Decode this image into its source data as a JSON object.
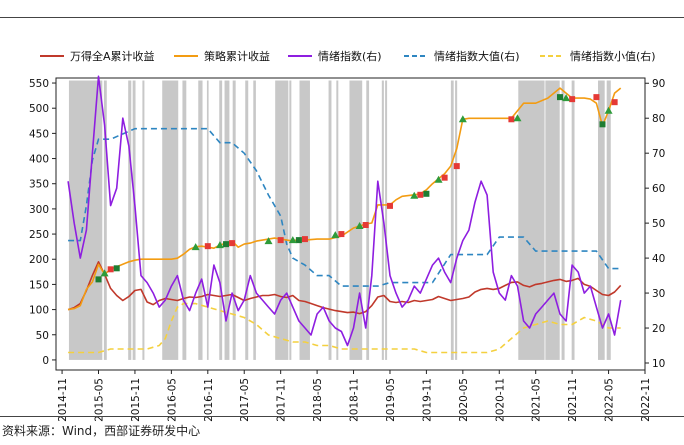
{
  "chart_data": {
    "type": "line",
    "title": "",
    "xlabel": "",
    "ylabel": "",
    "y2label": "",
    "x_ticks": [
      "2014-11",
      "2015-05",
      "2015-11",
      "2016-05",
      "2016-11",
      "2017-05",
      "2017-11",
      "2018-05",
      "2018-11",
      "2019-05",
      "2019-11",
      "2020-05",
      "2020-11",
      "2021-05",
      "2021-11",
      "2022-05",
      "2022-11"
    ],
    "ylim": [
      -20,
      560
    ],
    "y_ticks": [
      0,
      50,
      100,
      150,
      200,
      250,
      300,
      350,
      400,
      450,
      500,
      550
    ],
    "y2lim": [
      8,
      91.5
    ],
    "y2_ticks": [
      10,
      20,
      30,
      40,
      50,
      60,
      70,
      80,
      90
    ],
    "xlim": [
      "2014-10",
      "2022-11"
    ],
    "legend_position": "top",
    "grid": false,
    "shaded_periods": [
      [
        "2014-12-05",
        "2015-05-20"
      ],
      [
        "2015-05-28",
        "2015-06-12"
      ],
      [
        "2015-09-28",
        "2015-10-13"
      ],
      [
        "2015-10-20",
        "2015-11-04"
      ],
      [
        "2015-12-08",
        "2015-12-18"
      ],
      [
        "2016-03-16",
        "2016-06-05"
      ],
      [
        "2016-06-26",
        "2016-07-15"
      ],
      [
        "2016-09-14",
        "2016-10-05"
      ],
      [
        "2016-10-27",
        "2016-11-05"
      ],
      [
        "2016-12-28",
        "2017-01-12"
      ],
      [
        "2017-01-24",
        "2017-02-18"
      ],
      [
        "2017-03-04",
        "2017-03-19"
      ],
      [
        "2017-05-06",
        "2017-05-21"
      ],
      [
        "2017-06-16",
        "2017-06-29"
      ],
      [
        "2017-10-04",
        "2017-12-09"
      ],
      [
        "2017-12-14",
        "2017-12-24"
      ],
      [
        "2018-02-04",
        "2018-03-26"
      ],
      [
        "2018-06-28",
        "2018-07-12"
      ],
      [
        "2018-08-06",
        "2018-08-16"
      ],
      [
        "2018-10-11",
        "2018-12-14"
      ],
      [
        "2019-01-04",
        "2019-01-18"
      ],
      [
        "2019-03-21",
        "2019-04-01"
      ],
      [
        "2019-04-07",
        "2019-04-17"
      ],
      [
        "2020-03-02",
        "2020-03-16"
      ],
      [
        "2020-03-23",
        "2020-04-03"
      ],
      [
        "2021-02-05",
        "2021-06-15"
      ],
      [
        "2021-06-19",
        "2021-08-30"
      ],
      [
        "2021-09-09",
        "2021-09-24"
      ],
      [
        "2021-10-29",
        "2021-11-13"
      ],
      [
        "2022-03-09",
        "2022-04-12"
      ],
      [
        "2022-04-22",
        "2022-05-12"
      ]
    ],
    "series": [
      {
        "name": "万得全A累计收益",
        "axis": "left",
        "color": "#c0392b",
        "style": "solid",
        "x": [
          "2014-12",
          "2015-01",
          "2015-02",
          "2015-03",
          "2015-04",
          "2015-05",
          "2015-06",
          "2015-07",
          "2015-08",
          "2015-09",
          "2015-10",
          "2015-11",
          "2015-12",
          "2016-01",
          "2016-02",
          "2016-03",
          "2016-04",
          "2016-05",
          "2016-06",
          "2016-07",
          "2016-08",
          "2016-09",
          "2016-10",
          "2016-11",
          "2016-12",
          "2017-01",
          "2017-02",
          "2017-03",
          "2017-04",
          "2017-05",
          "2017-06",
          "2017-07",
          "2017-08",
          "2017-09",
          "2017-10",
          "2017-11",
          "2017-12",
          "2018-01",
          "2018-02",
          "2018-03",
          "2018-04",
          "2018-05",
          "2018-06",
          "2018-07",
          "2018-08",
          "2018-09",
          "2018-10",
          "2018-11",
          "2018-12",
          "2019-01",
          "2019-02",
          "2019-03",
          "2019-04",
          "2019-05",
          "2019-06",
          "2019-07",
          "2019-08",
          "2019-09",
          "2019-10",
          "2019-11",
          "2019-12",
          "2020-01",
          "2020-02",
          "2020-03",
          "2020-04",
          "2020-05",
          "2020-06",
          "2020-07",
          "2020-08",
          "2020-09",
          "2020-10",
          "2020-11",
          "2020-12",
          "2021-01",
          "2021-02",
          "2021-03",
          "2021-04",
          "2021-05",
          "2021-06",
          "2021-07",
          "2021-08",
          "2021-09",
          "2021-10",
          "2021-11",
          "2021-12",
          "2022-01",
          "2022-02",
          "2022-03",
          "2022-04",
          "2022-05",
          "2022-06",
          "2022-07"
        ],
        "values": [
          100,
          104,
          112,
          138,
          168,
          195,
          170,
          142,
          128,
          118,
          126,
          138,
          140,
          115,
          110,
          118,
          122,
          120,
          118,
          122,
          125,
          124,
          126,
          130,
          128,
          126,
          128,
          130,
          124,
          118,
          122,
          125,
          128,
          128,
          130,
          126,
          124,
          128,
          118,
          116,
          112,
          108,
          104,
          101,
          98,
          96,
          94,
          95,
          92,
          96,
          108,
          125,
          128,
          116,
          114,
          116,
          114,
          118,
          116,
          118,
          120,
          126,
          122,
          118,
          120,
          122,
          125,
          135,
          140,
          142,
          140,
          142,
          148,
          154,
          155,
          148,
          145,
          150,
          152,
          155,
          158,
          160,
          156,
          158,
          162,
          150,
          146,
          138,
          130,
          128,
          135,
          148
        ]
      },
      {
        "name": "策略累计收益",
        "axis": "left",
        "color": "#f39c12",
        "style": "solid",
        "x": [
          "2014-12",
          "2015-01",
          "2015-02",
          "2015-03",
          "2015-04",
          "2015-05",
          "2015-06",
          "2015-07",
          "2015-08",
          "2015-09",
          "2015-10",
          "2015-11",
          "2015-12",
          "2016-01",
          "2016-03",
          "2016-05",
          "2016-06",
          "2016-07",
          "2016-08",
          "2016-09",
          "2016-10",
          "2016-11",
          "2016-12",
          "2017-01",
          "2017-02",
          "2017-03",
          "2017-04",
          "2017-05",
          "2017-06",
          "2017-07",
          "2017-08",
          "2017-09",
          "2017-10",
          "2017-11",
          "2017-12",
          "2018-01",
          "2018-02",
          "2018-03",
          "2018-05",
          "2018-07",
          "2018-09",
          "2018-10",
          "2018-11",
          "2018-12",
          "2019-01",
          "2019-02",
          "2019-03",
          "2019-05",
          "2019-06",
          "2019-07",
          "2019-09",
          "2019-10",
          "2019-11",
          "2019-12",
          "2020-01",
          "2020-02",
          "2020-03",
          "2020-04",
          "2020-05",
          "2020-06",
          "2020-07",
          "2020-09",
          "2020-11",
          "2021-01",
          "2021-02",
          "2021-03",
          "2021-05",
          "2021-07",
          "2021-09",
          "2021-11",
          "2022-01",
          "2022-02",
          "2022-03",
          "2022-04",
          "2022-05",
          "2022-06",
          "2022-07"
        ],
        "values": [
          100,
          102,
          108,
          140,
          155,
          190,
          170,
          180,
          185,
          190,
          195,
          198,
          200,
          200,
          200,
          200,
          202,
          210,
          220,
          225,
          226,
          224,
          222,
          228,
          232,
          236,
          224,
          230,
          232,
          236,
          238,
          240,
          242,
          240,
          238,
          236,
          240,
          238,
          240,
          240,
          246,
          254,
          262,
          266,
          270,
          272,
          308,
          308,
          318,
          325,
          328,
          330,
          338,
          350,
          360,
          370,
          385,
          420,
          478,
          480,
          480,
          480,
          480,
          480,
          495,
          510,
          510,
          520,
          540,
          520,
          520,
          518,
          510,
          465,
          495,
          530,
          540
        ]
      },
      {
        "name": "情绪指数(右)",
        "axis": "right",
        "color": "#8e1ee0",
        "style": "solid",
        "x": [
          "2014-12",
          "2015-01",
          "2015-02",
          "2015-03",
          "2015-04",
          "2015-05",
          "2015-06",
          "2015-07",
          "2015-08",
          "2015-09",
          "2015-10",
          "2015-11",
          "2015-12",
          "2016-01",
          "2016-02",
          "2016-03",
          "2016-04",
          "2016-05",
          "2016-06",
          "2016-07",
          "2016-08",
          "2016-09",
          "2016-10",
          "2016-11",
          "2016-12",
          "2017-01",
          "2017-02",
          "2017-03",
          "2017-04",
          "2017-05",
          "2017-06",
          "2017-07",
          "2017-08",
          "2017-09",
          "2017-10",
          "2017-11",
          "2017-12",
          "2018-01",
          "2018-02",
          "2018-03",
          "2018-04",
          "2018-05",
          "2018-06",
          "2018-07",
          "2018-08",
          "2018-09",
          "2018-10",
          "2018-11",
          "2018-12",
          "2019-01",
          "2019-02",
          "2019-03",
          "2019-04",
          "2019-05",
          "2019-06",
          "2019-07",
          "2019-08",
          "2019-09",
          "2019-10",
          "2019-11",
          "2019-12",
          "2020-01",
          "2020-02",
          "2020-03",
          "2020-04",
          "2020-05",
          "2020-06",
          "2020-07",
          "2020-08",
          "2020-09",
          "2020-10",
          "2020-11",
          "2020-12",
          "2021-01",
          "2021-02",
          "2021-03",
          "2021-04",
          "2021-05",
          "2021-06",
          "2021-07",
          "2021-08",
          "2021-09",
          "2021-10",
          "2021-11",
          "2021-12",
          "2022-01",
          "2022-02",
          "2022-03",
          "2022-04",
          "2022-05",
          "2022-06",
          "2022-07"
        ],
        "values": [
          62,
          50,
          40,
          48,
          70,
          92,
          78,
          55,
          60,
          80,
          72,
          55,
          35,
          33,
          30,
          26,
          28,
          32,
          35,
          28,
          25,
          30,
          34,
          26,
          38,
          33,
          22,
          30,
          25,
          28,
          35,
          30,
          28,
          26,
          24,
          28,
          30,
          26,
          22,
          20,
          18,
          24,
          26,
          22,
          20,
          19,
          15,
          20,
          30,
          20,
          35,
          62,
          50,
          35,
          30,
          26,
          28,
          32,
          30,
          34,
          38,
          40,
          36,
          33,
          40,
          45,
          48,
          56,
          62,
          58,
          36,
          30,
          28,
          35,
          32,
          22,
          20,
          24,
          26,
          28,
          30,
          24,
          22,
          38,
          36,
          30,
          32,
          26,
          20,
          24,
          18,
          28
        ]
      },
      {
        "name": "情绪指数大值(右)",
        "axis": "right",
        "color": "#2e86c1",
        "style": "dashed",
        "x": [
          "2014-12",
          "2015-02",
          "2015-03",
          "2015-04",
          "2015-05",
          "2015-07",
          "2015-11",
          "2016-01",
          "2016-03",
          "2016-06",
          "2016-09",
          "2016-11",
          "2017-01",
          "2017-03",
          "2017-05",
          "2017-07",
          "2017-09",
          "2017-11",
          "2017-12",
          "2018-01",
          "2018-03",
          "2018-05",
          "2018-07",
          "2018-09",
          "2018-11",
          "2019-01",
          "2019-03",
          "2019-05",
          "2019-07",
          "2019-09",
          "2019-12",
          "2020-03",
          "2020-05",
          "2020-07",
          "2020-09",
          "2020-11",
          "2021-01",
          "2021-03",
          "2021-05",
          "2021-07",
          "2021-09",
          "2021-11",
          "2022-01",
          "2022-03",
          "2022-05",
          "2022-07"
        ],
        "values": [
          45,
          45,
          55,
          68,
          74,
          74,
          77,
          77,
          77,
          77,
          77,
          77,
          73,
          73,
          70,
          65,
          58,
          52,
          44,
          40,
          38,
          35,
          35,
          32,
          32,
          32,
          32,
          33,
          33,
          33,
          33,
          41,
          41,
          41,
          41,
          46,
          46,
          46,
          42,
          42,
          42,
          42,
          42,
          42,
          37,
          37
        ]
      },
      {
        "name": "情绪指数小值(右)",
        "axis": "right",
        "color": "#f4d03f",
        "style": "dashed",
        "x": [
          "2014-12",
          "2015-03",
          "2015-05",
          "2015-07",
          "2015-09",
          "2015-11",
          "2016-01",
          "2016-03",
          "2016-04",
          "2016-05",
          "2016-06",
          "2016-07",
          "2016-09",
          "2016-11",
          "2017-01",
          "2017-03",
          "2017-05",
          "2017-07",
          "2017-09",
          "2017-11",
          "2018-01",
          "2018-03",
          "2018-05",
          "2018-07",
          "2018-09",
          "2018-11",
          "2019-01",
          "2019-03",
          "2019-05",
          "2019-07",
          "2019-09",
          "2019-11",
          "2020-01",
          "2020-03",
          "2020-05",
          "2020-07",
          "2020-09",
          "2020-11",
          "2021-01",
          "2021-03",
          "2021-05",
          "2021-07",
          "2021-09",
          "2021-11",
          "2022-01",
          "2022-03",
          "2022-05",
          "2022-07"
        ],
        "values": [
          13,
          13,
          13,
          14,
          14,
          14,
          14,
          15,
          17,
          22,
          26,
          27,
          27,
          26,
          25,
          24,
          23,
          21,
          18,
          17,
          16,
          16,
          15,
          15,
          14,
          14,
          14,
          14,
          14,
          14,
          14,
          13,
          13,
          13,
          13,
          13,
          13,
          14,
          17,
          20,
          21,
          22,
          21,
          21,
          23,
          22,
          20,
          20
        ]
      }
    ],
    "markers": {
      "red_square": [
        {
          "x": "2015-07",
          "y": 180
        },
        {
          "x": "2016-11",
          "y": 226
        },
        {
          "x": "2017-03",
          "y": 232
        },
        {
          "x": "2017-11",
          "y": 238
        },
        {
          "x": "2018-03",
          "y": 240
        },
        {
          "x": "2018-09",
          "y": 250
        },
        {
          "x": "2019-01",
          "y": 268
        },
        {
          "x": "2019-05",
          "y": 306
        },
        {
          "x": "2019-10",
          "y": 328
        },
        {
          "x": "2020-02",
          "y": 362
        },
        {
          "x": "2020-04",
          "y": 385
        },
        {
          "x": "2021-01",
          "y": 478
        },
        {
          "x": "2021-11",
          "y": 518
        },
        {
          "x": "2022-03",
          "y": 522
        },
        {
          "x": "2022-06",
          "y": 512
        }
      ],
      "green_triangle": [
        {
          "x": "2015-06",
          "y": 172
        },
        {
          "x": "2016-09",
          "y": 224
        },
        {
          "x": "2017-01",
          "y": 228
        },
        {
          "x": "2017-09",
          "y": 236
        },
        {
          "x": "2018-01",
          "y": 238
        },
        {
          "x": "2018-08",
          "y": 248
        },
        {
          "x": "2018-12",
          "y": 266
        },
        {
          "x": "2019-09",
          "y": 326
        },
        {
          "x": "2020-01",
          "y": 358
        },
        {
          "x": "2020-05",
          "y": 478
        },
        {
          "x": "2021-02",
          "y": 480
        },
        {
          "x": "2021-10",
          "y": 520
        },
        {
          "x": "2022-05",
          "y": 495
        }
      ],
      "green_square": [
        {
          "x": "2015-05",
          "y": 160
        },
        {
          "x": "2015-08",
          "y": 182
        },
        {
          "x": "2017-02",
          "y": 230
        },
        {
          "x": "2018-02",
          "y": 238
        },
        {
          "x": "2019-11",
          "y": 330
        },
        {
          "x": "2021-09",
          "y": 522
        },
        {
          "x": "2022-04",
          "y": 468
        }
      ]
    }
  },
  "source": "资料来源：Wind，西部证券研发中心"
}
